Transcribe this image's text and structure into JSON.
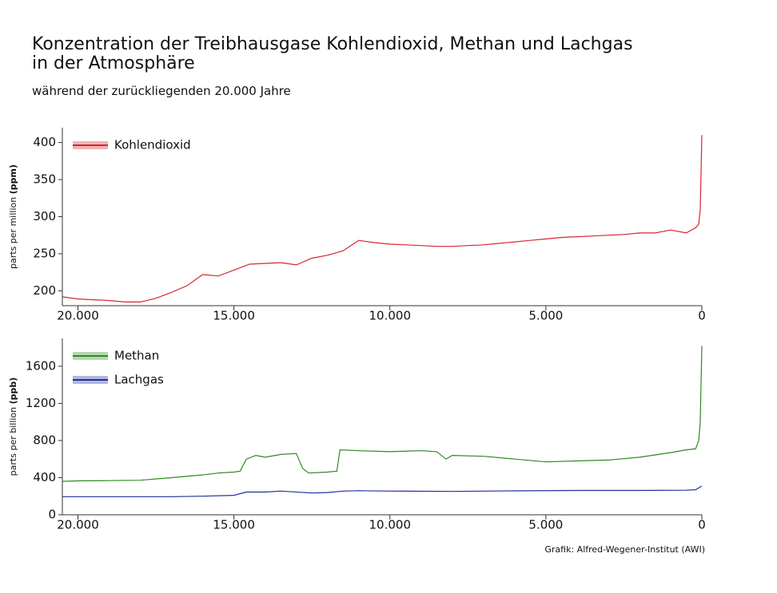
{
  "title": [
    "Konzentration der Treibhausgase Kohlendioxid, Methan und Lachgas",
    "in der Atmosphäre"
  ],
  "subtitle": "während der zurückliegenden 20.000 Jahre",
  "credit": "Grafik: Alfred-Wegener-Institut (AWI)",
  "chart_data": [
    {
      "type": "line",
      "ylabel": [
        "parts per million",
        "(ppm)"
      ],
      "xlim": [
        20500,
        0
      ],
      "xticks": [
        {
          "value": 20000,
          "label": "20.000"
        },
        {
          "value": 15000,
          "label": "15.000"
        },
        {
          "value": 10000,
          "label": "10.000"
        },
        {
          "value": 5000,
          "label": "5.000"
        },
        0
      ],
      "ylim": [
        180,
        420
      ],
      "yticks": [
        200,
        250,
        300,
        350,
        400
      ],
      "series": [
        {
          "name": "Kohlendioxid",
          "color": "#d7262f",
          "x": [
            20500,
            20000,
            19500,
            19000,
            18500,
            18000,
            17500,
            17000,
            16500,
            16000,
            15500,
            15000,
            14500,
            14000,
            13500,
            13000,
            12500,
            12000,
            11500,
            11000,
            10500,
            10000,
            9500,
            9000,
            8500,
            8000,
            7500,
            7000,
            6500,
            6000,
            5500,
            5000,
            4500,
            4000,
            3500,
            3000,
            2500,
            2000,
            1500,
            1000,
            500,
            200,
            100,
            50,
            0
          ],
          "values": [
            192,
            189,
            188,
            187,
            185,
            185,
            190,
            198,
            207,
            222,
            220,
            228,
            236,
            237,
            238,
            235,
            244,
            248,
            254,
            268,
            265,
            263,
            262,
            261,
            260,
            260,
            261,
            262,
            264,
            266,
            268,
            270,
            272,
            273,
            274,
            275,
            276,
            278,
            278,
            282,
            278,
            285,
            290,
            310,
            410
          ]
        }
      ]
    },
    {
      "type": "line",
      "ylabel": [
        "parts per billion",
        "(ppb)"
      ],
      "xlim": [
        20500,
        0
      ],
      "xticks": [
        {
          "value": 20000,
          "label": "20.000"
        },
        {
          "value": 15000,
          "label": "15.000"
        },
        {
          "value": 10000,
          "label": "10.000"
        },
        {
          "value": 5000,
          "label": "5.000"
        },
        0
      ],
      "ylim": [
        0,
        1900
      ],
      "yticks": [
        0,
        400,
        800,
        1200,
        1600
      ],
      "series": [
        {
          "name": "Methan",
          "color": "#2d8a1f",
          "x": [
            20500,
            20000,
            19000,
            18000,
            17000,
            16000,
            15500,
            15000,
            14800,
            14600,
            14300,
            14000,
            13500,
            13000,
            12800,
            12600,
            12000,
            11700,
            11600,
            11000,
            10000,
            9000,
            8500,
            8200,
            8000,
            7000,
            6000,
            5000,
            4000,
            3000,
            2000,
            1000,
            500,
            200,
            100,
            50,
            0
          ],
          "values": [
            360,
            365,
            368,
            372,
            400,
            430,
            450,
            460,
            470,
            600,
            640,
            620,
            650,
            660,
            500,
            450,
            460,
            470,
            700,
            690,
            680,
            690,
            680,
            600,
            640,
            630,
            600,
            570,
            580,
            590,
            620,
            670,
            700,
            710,
            800,
            1000,
            1820
          ]
        },
        {
          "name": "Lachgas",
          "color": "#1f2fa0",
          "x": [
            20500,
            17000,
            16000,
            15000,
            14600,
            14000,
            13500,
            12500,
            12000,
            11500,
            11000,
            10000,
            8000,
            6000,
            4000,
            2000,
            500,
            200,
            0
          ],
          "values": [
            195,
            195,
            200,
            210,
            245,
            245,
            255,
            235,
            240,
            255,
            260,
            255,
            252,
            258,
            262,
            262,
            265,
            270,
            310
          ]
        }
      ]
    }
  ]
}
